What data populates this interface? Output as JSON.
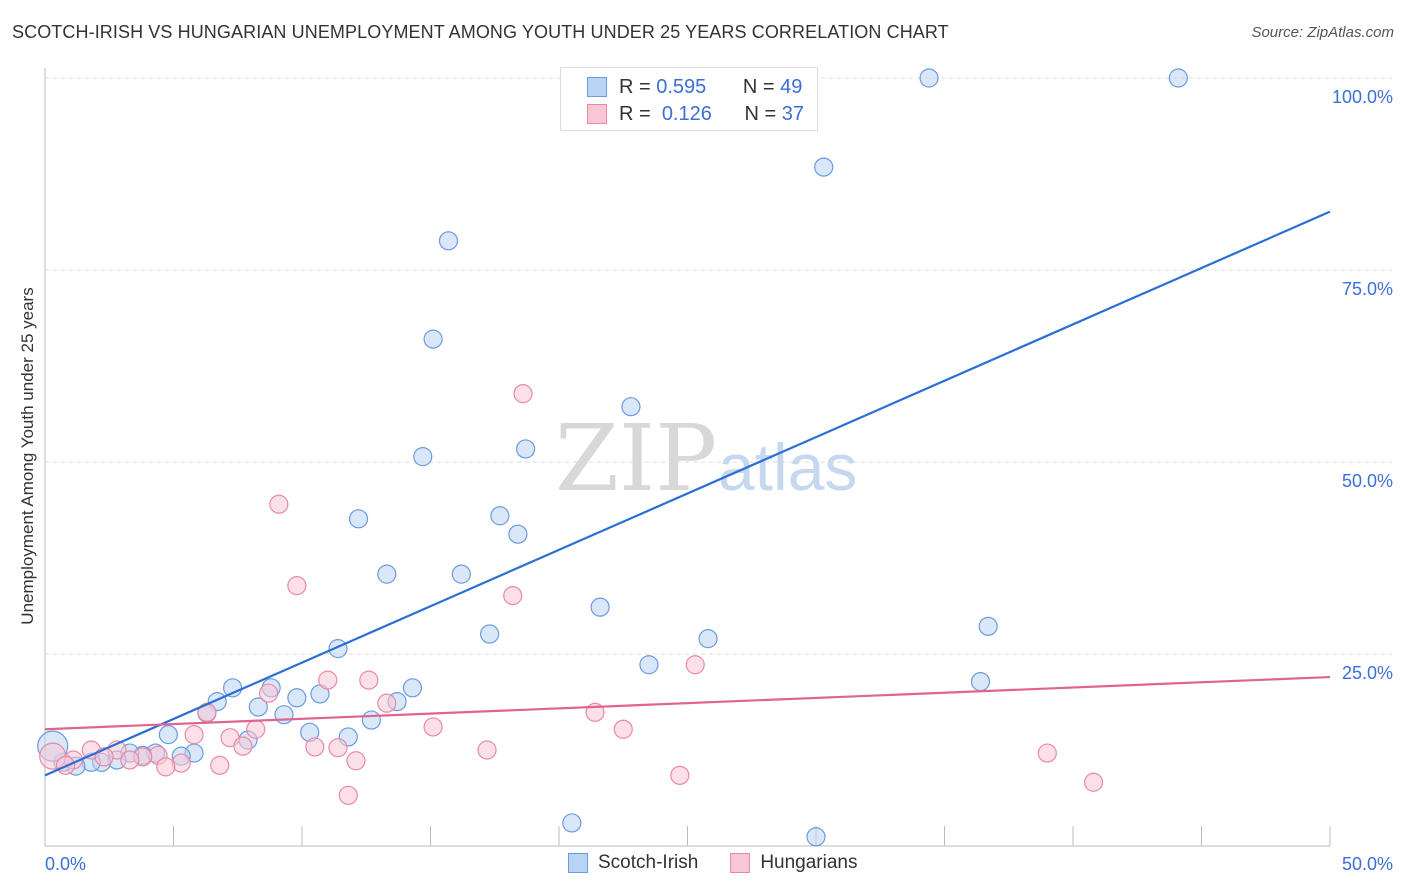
{
  "title": "SCOTCH-IRISH VS HUNGARIAN UNEMPLOYMENT AMONG YOUTH UNDER 25 YEARS CORRELATION CHART",
  "source": "Source: ZipAtlas.com",
  "watermark": "ZIPatlas",
  "legend": {
    "rows": [
      {
        "r_label": "R =",
        "r": "0.595",
        "n_label": "N =",
        "n": "49"
      },
      {
        "r_label": "R =",
        "r": "0.126",
        "n_label": "N =",
        "n": "37"
      }
    ]
  },
  "chart_data": {
    "type": "scatter",
    "title": "SCOTCH-IRISH VS HUNGARIAN UNEMPLOYMENT AMONG YOUTH UNDER 25 YEARS CORRELATION CHART",
    "xlabel": "",
    "ylabel": "Unemployment Among Youth under 25 years",
    "xlim": [
      0,
      50
    ],
    "ylim": [
      0,
      100
    ],
    "x_tick_labels": [
      "0.0%",
      "50.0%"
    ],
    "y_tick_labels": [
      {
        "v": 100,
        "label": "100.0%"
      },
      {
        "v": 75,
        "label": "75.0%"
      },
      {
        "v": 50,
        "label": "50.0%"
      },
      {
        "v": 25,
        "label": "25.0%"
      }
    ],
    "grid": true,
    "legend_position": "bottom",
    "series": [
      {
        "name": "Scotch-Irish",
        "color": "#6a9be0",
        "fill": "#b9d3f3",
        "line_color": "#2a6fd6",
        "trend": [
          [
            0,
            9.2
          ],
          [
            50,
            82.6
          ]
        ],
        "points": [
          [
            20.5,
            100
          ],
          [
            34.4,
            100
          ],
          [
            44.1,
            100
          ],
          [
            30.3,
            88.4
          ],
          [
            15.7,
            78.8
          ],
          [
            15.1,
            66.0
          ],
          [
            22.8,
            57.2
          ],
          [
            18.7,
            51.7
          ],
          [
            14.7,
            50.7
          ],
          [
            12.2,
            42.6
          ],
          [
            17.7,
            43.0
          ],
          [
            18.4,
            40.6
          ],
          [
            13.3,
            35.4
          ],
          [
            16.2,
            35.4
          ],
          [
            21.6,
            31.1
          ],
          [
            17.3,
            27.6
          ],
          [
            25.8,
            27.0
          ],
          [
            36.7,
            28.6
          ],
          [
            11.4,
            25.7
          ],
          [
            23.5,
            23.6
          ],
          [
            36.4,
            21.4
          ],
          [
            7.3,
            20.6
          ],
          [
            8.8,
            20.6
          ],
          [
            14.3,
            20.6
          ],
          [
            10.7,
            19.8
          ],
          [
            9.8,
            19.3
          ],
          [
            6.7,
            18.8
          ],
          [
            8.3,
            18.1
          ],
          [
            13.7,
            18.8
          ],
          [
            6.3,
            17.3
          ],
          [
            9.3,
            17.1
          ],
          [
            12.7,
            16.4
          ],
          [
            10.3,
            14.8
          ],
          [
            11.8,
            14.2
          ],
          [
            4.8,
            14.5
          ],
          [
            7.9,
            13.8
          ],
          [
            5.8,
            12.1
          ],
          [
            5.3,
            11.7
          ],
          [
            4.3,
            12.1
          ],
          [
            3.8,
            11.8
          ],
          [
            3.3,
            12.1
          ],
          [
            2.8,
            11.2
          ],
          [
            2.2,
            10.9
          ],
          [
            1.8,
            10.9
          ],
          [
            1.2,
            10.4
          ],
          [
            0.7,
            10.9
          ],
          [
            0.3,
            13.0
          ],
          [
            20.5,
            3.0
          ],
          [
            30.0,
            1.2
          ]
        ]
      },
      {
        "name": "Hungarians",
        "color": "#e88aa6",
        "fill": "#f8c6d5",
        "line_color": "#e0648e",
        "trend": [
          [
            0,
            15.2
          ],
          [
            50,
            22.0
          ]
        ],
        "points": [
          [
            18.6,
            58.9
          ],
          [
            9.1,
            44.5
          ],
          [
            9.8,
            33.9
          ],
          [
            18.2,
            32.6
          ],
          [
            25.3,
            23.6
          ],
          [
            11.0,
            21.6
          ],
          [
            12.6,
            21.6
          ],
          [
            8.7,
            19.9
          ],
          [
            13.3,
            18.6
          ],
          [
            21.4,
            17.4
          ],
          [
            6.3,
            17.4
          ],
          [
            15.1,
            15.5
          ],
          [
            22.5,
            15.2
          ],
          [
            8.2,
            15.2
          ],
          [
            5.8,
            14.5
          ],
          [
            7.2,
            14.1
          ],
          [
            7.7,
            13.0
          ],
          [
            10.5,
            12.9
          ],
          [
            11.4,
            12.8
          ],
          [
            17.2,
            12.5
          ],
          [
            39.0,
            12.1
          ],
          [
            1.8,
            12.5
          ],
          [
            2.8,
            12.5
          ],
          [
            4.4,
            11.8
          ],
          [
            3.8,
            11.6
          ],
          [
            3.3,
            11.2
          ],
          [
            5.3,
            10.8
          ],
          [
            12.1,
            11.1
          ],
          [
            6.8,
            10.5
          ],
          [
            4.7,
            10.3
          ],
          [
            1.1,
            11.2
          ],
          [
            0.3,
            11.7
          ],
          [
            24.7,
            9.2
          ],
          [
            40.8,
            8.3
          ],
          [
            11.8,
            6.6
          ],
          [
            0.8,
            10.5
          ],
          [
            2.3,
            11.6
          ]
        ]
      }
    ]
  }
}
